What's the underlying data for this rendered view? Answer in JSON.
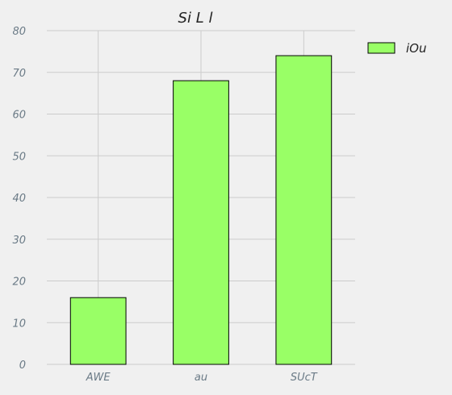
{
  "chart_data": {
    "type": "bar",
    "title": "Si  L l",
    "categories": [
      "AWE",
      "au",
      "SUcT"
    ],
    "series": [
      {
        "name": "iOu",
        "values": [
          16,
          68,
          74
        ]
      }
    ],
    "xlabel": "",
    "ylabel": "",
    "ylim": [
      0,
      80
    ],
    "yticks": [
      0,
      10,
      20,
      30,
      40,
      50,
      60,
      70,
      80
    ],
    "grid": true,
    "legend_position": "top-right",
    "colors": {
      "bar_fill": "#99ff66",
      "bar_stroke": "#000000",
      "grid": "#cccccc",
      "background": "#f0f0f0"
    }
  }
}
